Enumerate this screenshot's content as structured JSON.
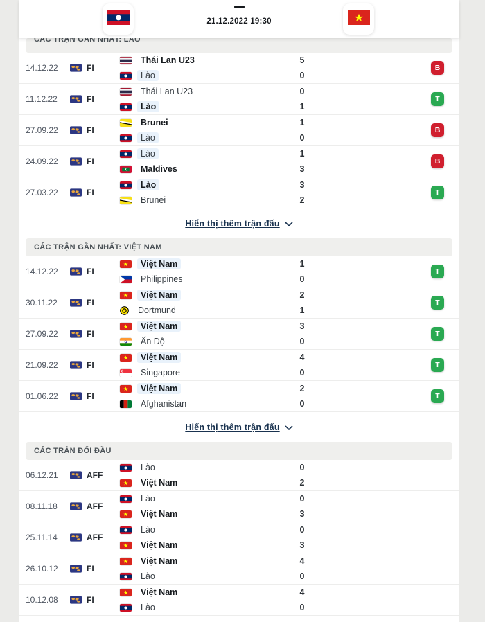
{
  "header": {
    "home_flag": "laos",
    "away_flag": "vietnam",
    "datetime": "21.12.2022 19:30"
  },
  "colors": {
    "win": "#2aa952",
    "loss": "#d01f2e",
    "link": "#19324f",
    "highlight": "#e9f2fb"
  },
  "sections": [
    {
      "title": "CÁC TRẬN GẦN NHẤT: LÀO",
      "show_more": "Hiển thị thêm trận đấu",
      "rows": [
        {
          "date": "14.12.22",
          "comp": "FI",
          "home": {
            "name": "Thái Lan U23",
            "flag": "thailand",
            "bold": true
          },
          "away": {
            "name": "Lào",
            "flag": "laos",
            "highlight": true
          },
          "home_score": "5",
          "away_score": "0",
          "result": "B"
        },
        {
          "date": "11.12.22",
          "comp": "FI",
          "home": {
            "name": "Thái Lan U23",
            "flag": "thailand"
          },
          "away": {
            "name": "Lào",
            "flag": "laos",
            "bold": true,
            "highlight": true
          },
          "home_score": "0",
          "away_score": "1",
          "result": "T"
        },
        {
          "date": "27.09.22",
          "comp": "FI",
          "home": {
            "name": "Brunei",
            "flag": "brunei",
            "bold": true
          },
          "away": {
            "name": "Lào",
            "flag": "laos",
            "highlight": true
          },
          "home_score": "1",
          "away_score": "0",
          "result": "B"
        },
        {
          "date": "24.09.22",
          "comp": "FI",
          "home": {
            "name": "Lào",
            "flag": "laos",
            "highlight": true
          },
          "away": {
            "name": "Maldives",
            "flag": "maldives",
            "bold": true
          },
          "home_score": "1",
          "away_score": "3",
          "result": "B"
        },
        {
          "date": "27.03.22",
          "comp": "FI",
          "home": {
            "name": "Lào",
            "flag": "laos",
            "bold": true,
            "highlight": true
          },
          "away": {
            "name": "Brunei",
            "flag": "brunei"
          },
          "home_score": "3",
          "away_score": "2",
          "result": "T"
        }
      ]
    },
    {
      "title": "CÁC TRẬN GẦN NHẤT: VIỆT NAM",
      "show_more": "Hiển thị thêm trận đấu",
      "rows": [
        {
          "date": "14.12.22",
          "comp": "FI",
          "home": {
            "name": "Việt Nam",
            "flag": "vietnam",
            "bold": true,
            "highlight": true
          },
          "away": {
            "name": "Philippines",
            "flag": "philippines"
          },
          "home_score": "1",
          "away_score": "0",
          "result": "T"
        },
        {
          "date": "30.11.22",
          "comp": "FI",
          "home": {
            "name": "Việt Nam",
            "flag": "vietnam",
            "bold": true,
            "highlight": true
          },
          "away": {
            "name": "Dortmund",
            "flag": "dortmund"
          },
          "home_score": "2",
          "away_score": "1",
          "result": "T"
        },
        {
          "date": "27.09.22",
          "comp": "FI",
          "home": {
            "name": "Việt Nam",
            "flag": "vietnam",
            "bold": true,
            "highlight": true
          },
          "away": {
            "name": "Ấn Độ",
            "flag": "india"
          },
          "home_score": "3",
          "away_score": "0",
          "result": "T"
        },
        {
          "date": "21.09.22",
          "comp": "FI",
          "home": {
            "name": "Việt Nam",
            "flag": "vietnam",
            "bold": true,
            "highlight": true
          },
          "away": {
            "name": "Singapore",
            "flag": "singapore"
          },
          "home_score": "4",
          "away_score": "0",
          "result": "T"
        },
        {
          "date": "01.06.22",
          "comp": "FI",
          "home": {
            "name": "Việt Nam",
            "flag": "vietnam",
            "bold": true,
            "highlight": true
          },
          "away": {
            "name": "Afghanistan",
            "flag": "afghanistan"
          },
          "home_score": "2",
          "away_score": "0",
          "result": "T"
        }
      ]
    },
    {
      "title": "CÁC TRẬN ĐỐI ĐẦU",
      "show_more": null,
      "rows": [
        {
          "date": "06.12.21",
          "comp": "AFF",
          "home": {
            "name": "Lào",
            "flag": "laos"
          },
          "away": {
            "name": "Việt Nam",
            "flag": "vietnam",
            "bold": true
          },
          "home_score": "0",
          "away_score": "2",
          "result": null
        },
        {
          "date": "08.11.18",
          "comp": "AFF",
          "home": {
            "name": "Lào",
            "flag": "laos"
          },
          "away": {
            "name": "Việt Nam",
            "flag": "vietnam",
            "bold": true
          },
          "home_score": "0",
          "away_score": "3",
          "result": null
        },
        {
          "date": "25.11.14",
          "comp": "AFF",
          "home": {
            "name": "Lào",
            "flag": "laos"
          },
          "away": {
            "name": "Việt Nam",
            "flag": "vietnam",
            "bold": true
          },
          "home_score": "0",
          "away_score": "3",
          "result": null
        },
        {
          "date": "26.10.12",
          "comp": "FI",
          "home": {
            "name": "Việt Nam",
            "flag": "vietnam",
            "bold": true
          },
          "away": {
            "name": "Lào",
            "flag": "laos"
          },
          "home_score": "4",
          "away_score": "0",
          "result": null
        },
        {
          "date": "10.12.08",
          "comp": "FI",
          "home": {
            "name": "Việt Nam",
            "flag": "vietnam",
            "bold": true
          },
          "away": {
            "name": "Lào",
            "flag": "laos"
          },
          "home_score": "4",
          "away_score": "0",
          "result": null
        }
      ]
    }
  ]
}
